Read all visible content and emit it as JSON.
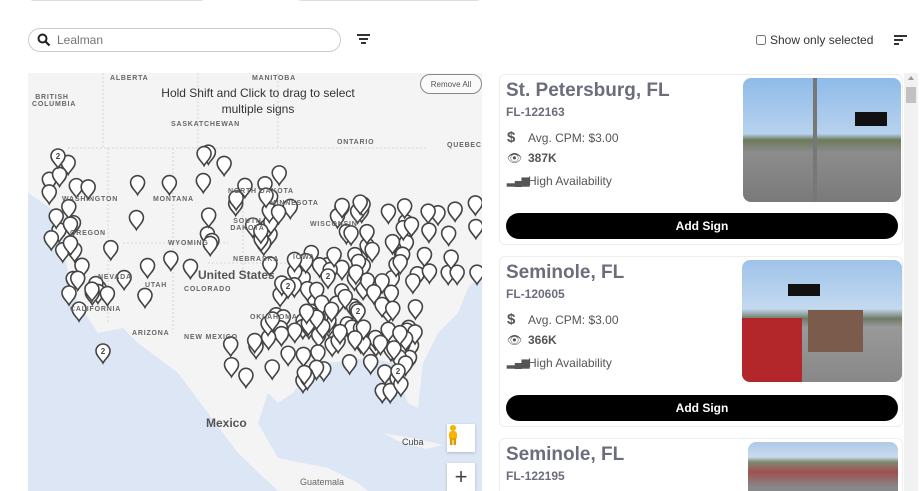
{
  "search": {
    "placeholder": "Lealman",
    "icon": "search-icon"
  },
  "show_only_selected": {
    "label": "Show only selected",
    "checked": false
  },
  "map": {
    "hint": "Hold Shift and Click to drag to select multiple signs",
    "remove_all": "Remove All",
    "zoom_in": "+",
    "labels": {
      "alberta": "ALBERTA",
      "manitoba": "MANITOBA",
      "british_columbia": "BRITISH COLUMBIA",
      "saskatchewan": "SASKATCHEWAN",
      "ontario": "ONTARIO",
      "quebec": "QUEBEC",
      "washington": "WASHINGTON",
      "montana": "MONTANA",
      "oregon": "OREGON",
      "north_dakota": "NORTH DAKOTA",
      "south_dakota": "SOUTH DAKOTA",
      "minnesota": "MINNESOTA",
      "wisconsin": "WISCONSIN",
      "wyoming": "WYOMING",
      "nebraska": "NEBRASKA",
      "iowa": "IOWA",
      "nevada": "NEVADA",
      "utah": "UTAH",
      "colorado": "COLORADO",
      "united_states": "United States",
      "california": "CALIFORNIA",
      "new_mexico": "NEW MEXICO",
      "oklahoma": "OKLAHOMA",
      "arizona": "ARIZONA",
      "mexico": "Mexico",
      "cuba": "Cuba",
      "guatemala": "Guatemala",
      "cluster_count": "2"
    }
  },
  "listings": [
    {
      "city": "St. Petersburg, FL",
      "code": "FL-122163",
      "cpm": "Avg. CPM: $3.00",
      "impressions": "387K",
      "availability": "High Availability",
      "button": "Add Sign"
    },
    {
      "city": "Seminole, FL",
      "code": "FL-120605",
      "cpm": "Avg. CPM: $3.00",
      "impressions": "366K",
      "availability": "High Availability",
      "button": "Add Sign"
    },
    {
      "city": "Seminole, FL",
      "code": "FL-122195"
    }
  ],
  "colors": {
    "button": "#000000",
    "title": "#6b6d7d",
    "water": "#dce6f5",
    "land": "#f4f4f4"
  }
}
